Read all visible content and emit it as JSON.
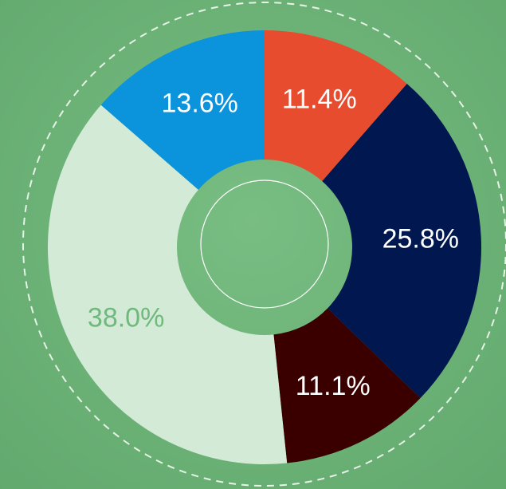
{
  "chart_data": {
    "type": "donut",
    "values": [
      11.4,
      25.8,
      11.1,
      38.0,
      13.6
    ],
    "value_labels": [
      "11.4%",
      "25.8%",
      "11.1%",
      "38.0%",
      "13.6%"
    ],
    "colors": [
      "#e84c2e",
      "#00174f",
      "#3a0000",
      "#d3ead6",
      "#0b93dc"
    ],
    "label_colors": [
      "#ffffff",
      "#ffffff",
      "#ffffff",
      "#6fb97c",
      "#ffffff"
    ]
  }
}
